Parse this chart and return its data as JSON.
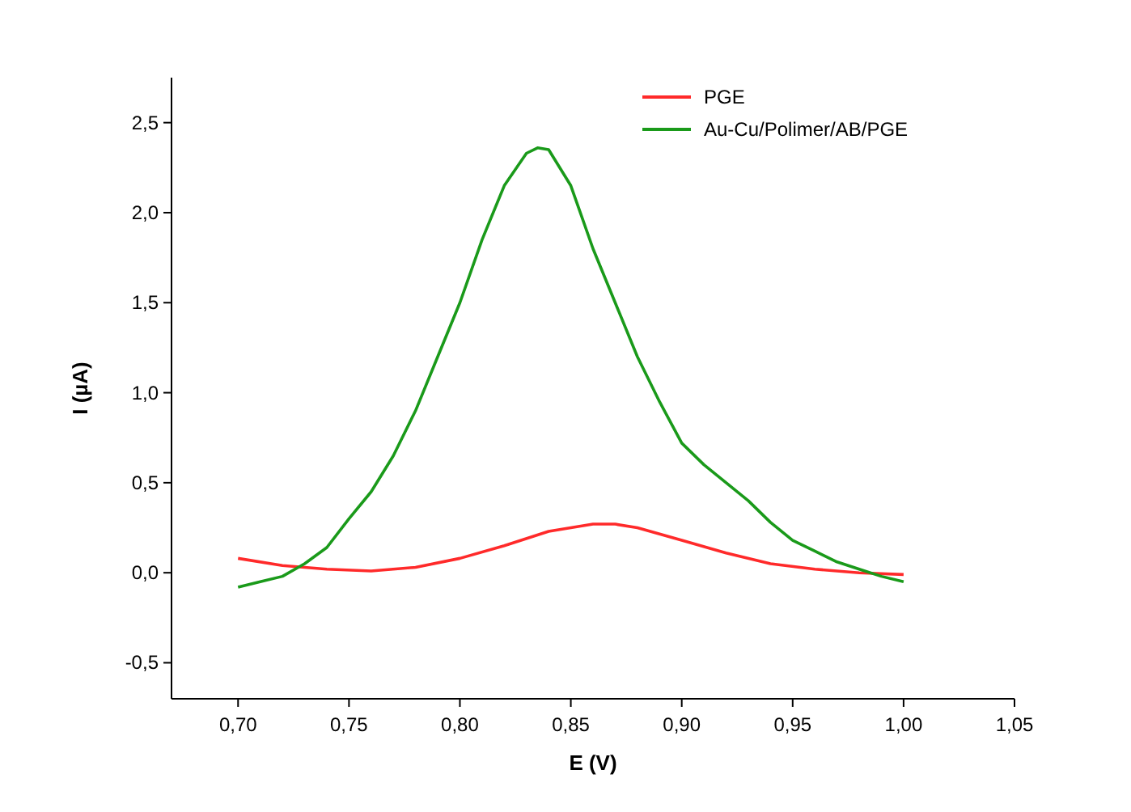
{
  "chart_data": {
    "type": "line",
    "xlabel": "E (V)",
    "ylabel": "I (µA)",
    "xlim": [
      0.67,
      1.05
    ],
    "ylim": [
      -0.7,
      2.75
    ],
    "xticks": [
      {
        "value": 0.7,
        "label": "0,70"
      },
      {
        "value": 0.75,
        "label": "0,75"
      },
      {
        "value": 0.8,
        "label": "0,80"
      },
      {
        "value": 0.85,
        "label": "0,85"
      },
      {
        "value": 0.9,
        "label": "0,90"
      },
      {
        "value": 0.95,
        "label": "0,95"
      },
      {
        "value": 1.0,
        "label": "1,00"
      },
      {
        "value": 1.05,
        "label": "1,05"
      }
    ],
    "yticks": [
      {
        "value": -0.5,
        "label": "-0,5"
      },
      {
        "value": 0,
        "label": "0,0"
      },
      {
        "value": 0.5,
        "label": "0,5"
      },
      {
        "value": 1.0,
        "label": "1,0"
      },
      {
        "value": 1.5,
        "label": "1,5"
      },
      {
        "value": 2.0,
        "label": "2,0"
      },
      {
        "value": 2.5,
        "label": "2,5"
      }
    ],
    "legend": "top right",
    "grid": false,
    "series": [
      {
        "name": "PGE",
        "color": "#ff2a2a",
        "x": [
          0.7,
          0.72,
          0.74,
          0.76,
          0.78,
          0.8,
          0.82,
          0.84,
          0.86,
          0.87,
          0.88,
          0.9,
          0.92,
          0.94,
          0.96,
          0.98,
          1.0
        ],
        "values": [
          0.08,
          0.04,
          0.02,
          0.01,
          0.03,
          0.08,
          0.15,
          0.23,
          0.27,
          0.27,
          0.25,
          0.18,
          0.11,
          0.05,
          0.02,
          0.0,
          -0.01
        ]
      },
      {
        "name": "Au-Cu/Polimer/AB/PGE",
        "color": "#1a9a1a",
        "x": [
          0.7,
          0.71,
          0.72,
          0.73,
          0.74,
          0.75,
          0.76,
          0.77,
          0.78,
          0.79,
          0.8,
          0.81,
          0.82,
          0.83,
          0.835,
          0.84,
          0.85,
          0.86,
          0.87,
          0.88,
          0.89,
          0.9,
          0.91,
          0.92,
          0.93,
          0.94,
          0.95,
          0.96,
          0.97,
          0.98,
          0.99,
          1.0
        ],
        "values": [
          -0.08,
          -0.05,
          -0.02,
          0.05,
          0.14,
          0.3,
          0.45,
          0.65,
          0.9,
          1.2,
          1.5,
          1.85,
          2.15,
          2.33,
          2.36,
          2.35,
          2.15,
          1.8,
          1.5,
          1.2,
          0.95,
          0.72,
          0.6,
          0.5,
          0.4,
          0.28,
          0.18,
          0.12,
          0.06,
          0.02,
          -0.02,
          -0.05
        ]
      }
    ]
  }
}
